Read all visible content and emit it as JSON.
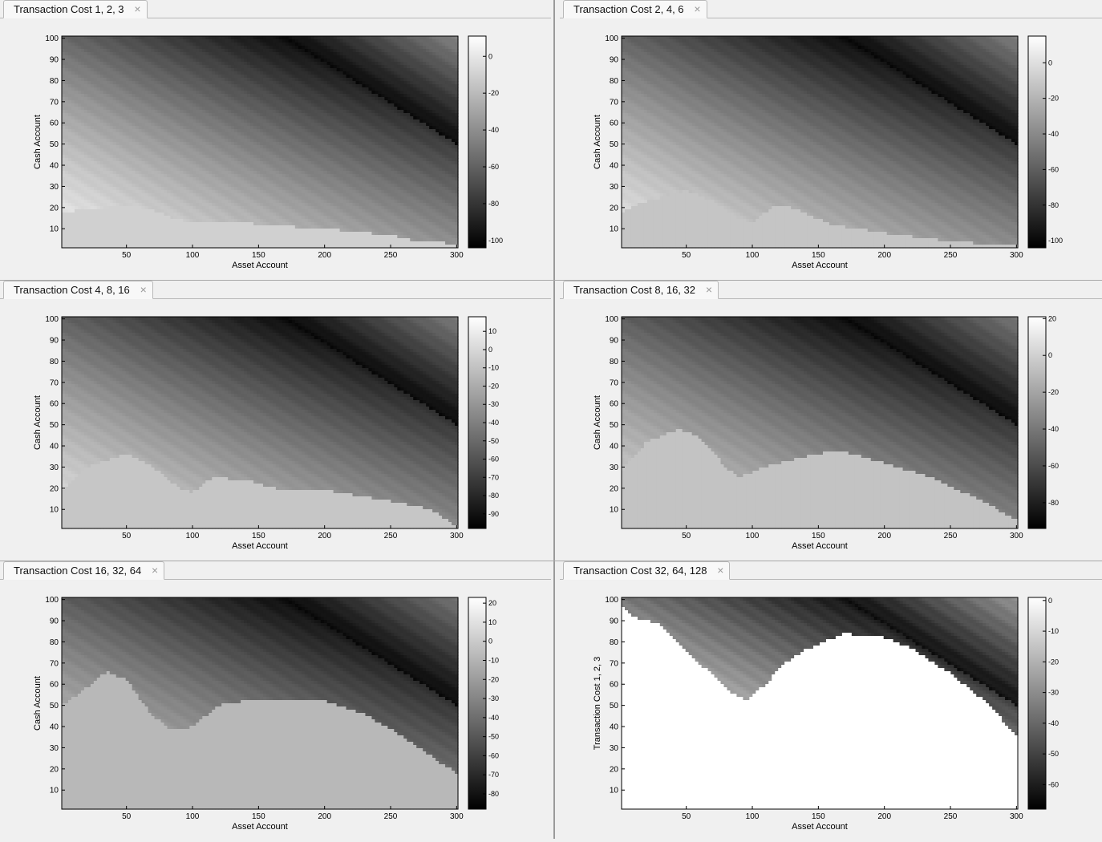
{
  "panels": [
    {
      "tab_label": "Transaction Cost 1, 2, 3",
      "xlabel": "Asset Account",
      "ylabel": "Cash Account",
      "colorbar_ticks": [
        0,
        -20,
        -40,
        -60,
        -80,
        -100
      ],
      "clim": [
        -104,
        11
      ],
      "plateau": {
        "value": -10,
        "boundary": [
          [
            1,
            18
          ],
          [
            25,
            19
          ],
          [
            50,
            21
          ],
          [
            70,
            19
          ],
          [
            90,
            14
          ],
          [
            110,
            13
          ],
          [
            140,
            13
          ],
          [
            150,
            12
          ],
          [
            200,
            10
          ],
          [
            250,
            7
          ],
          [
            270,
            4
          ],
          [
            300,
            3
          ]
        ]
      }
    },
    {
      "tab_label": "Transaction Cost 2, 4, 6",
      "xlabel": "Asset Account",
      "ylabel": "Cash Account",
      "colorbar_ticks": [
        0,
        -20,
        -40,
        -60,
        -80,
        -100
      ],
      "clim": [
        -104,
        15
      ],
      "plateau": {
        "value": -12,
        "boundary": [
          [
            1,
            18
          ],
          [
            20,
            23
          ],
          [
            50,
            28
          ],
          [
            70,
            23
          ],
          [
            90,
            15
          ],
          [
            100,
            13
          ],
          [
            115,
            20
          ],
          [
            130,
            20
          ],
          [
            160,
            12
          ],
          [
            200,
            8
          ],
          [
            250,
            4
          ],
          [
            300,
            2
          ]
        ]
      }
    },
    {
      "tab_label": "Transaction Cost 4, 8, 16",
      "xlabel": "Asset Account",
      "ylabel": "Cash Account",
      "colorbar_ticks": [
        10,
        0,
        -10,
        -20,
        -30,
        -40,
        -50,
        -60,
        -70,
        -80,
        -90
      ],
      "clim": [
        -98,
        18
      ],
      "plateau": {
        "value": -8,
        "boundary": [
          [
            1,
            18
          ],
          [
            20,
            30
          ],
          [
            50,
            36
          ],
          [
            70,
            30
          ],
          [
            90,
            20
          ],
          [
            100,
            18
          ],
          [
            115,
            25
          ],
          [
            140,
            24
          ],
          [
            160,
            20
          ],
          [
            200,
            19
          ],
          [
            250,
            14
          ],
          [
            280,
            10
          ],
          [
            300,
            2
          ]
        ]
      }
    },
    {
      "tab_label": "Transaction Cost 8, 16, 32",
      "xlabel": "Asset Account",
      "ylabel": "Cash Account",
      "colorbar_ticks": [
        20,
        0,
        -20,
        -40,
        -60,
        -80
      ],
      "clim": [
        -94,
        21
      ],
      "plateau": {
        "value": -6,
        "boundary": [
          [
            1,
            28
          ],
          [
            20,
            42
          ],
          [
            45,
            48
          ],
          [
            60,
            44
          ],
          [
            80,
            30
          ],
          [
            90,
            25
          ],
          [
            110,
            30
          ],
          [
            140,
            35
          ],
          [
            165,
            38
          ],
          [
            200,
            32
          ],
          [
            240,
            24
          ],
          [
            280,
            12
          ],
          [
            300,
            5
          ]
        ]
      }
    },
    {
      "tab_label": "Transaction Cost 16, 32, 64",
      "xlabel": "Asset Account",
      "ylabel": "Cash Account",
      "colorbar_ticks": [
        20,
        10,
        0,
        -10,
        -20,
        -30,
        -40,
        -50,
        -60,
        -70,
        -80
      ],
      "clim": [
        -88,
        23
      ],
      "plateau": {
        "value": -8,
        "boundary": [
          [
            1,
            50
          ],
          [
            15,
            56
          ],
          [
            35,
            66
          ],
          [
            50,
            62
          ],
          [
            70,
            45
          ],
          [
            85,
            38
          ],
          [
            100,
            40
          ],
          [
            120,
            50
          ],
          [
            150,
            53
          ],
          [
            200,
            52
          ],
          [
            230,
            46
          ],
          [
            260,
            35
          ],
          [
            285,
            24
          ],
          [
            300,
            18
          ]
        ]
      }
    },
    {
      "tab_label": "Transaction Cost 32, 64, 128",
      "xlabel": "Asset Account",
      "ylabel": "Transaction Cost 1, 2, 3",
      "colorbar_ticks": [
        0,
        -10,
        -20,
        -30,
        -40,
        -50,
        -60
      ],
      "clim": [
        -68,
        1
      ],
      "plateau": {
        "value": 1,
        "boundary": [
          [
            1,
            98
          ],
          [
            10,
            92
          ],
          [
            30,
            88
          ],
          [
            60,
            70
          ],
          [
            80,
            58
          ],
          [
            95,
            52
          ],
          [
            110,
            60
          ],
          [
            125,
            70
          ],
          [
            140,
            76
          ],
          [
            170,
            84
          ],
          [
            200,
            82
          ],
          [
            220,
            77
          ],
          [
            250,
            65
          ],
          [
            280,
            50
          ],
          [
            300,
            35
          ]
        ]
      }
    }
  ],
  "chart_data": [
    {
      "type": "heatmap",
      "title": "",
      "xlabel": "Asset Account",
      "ylabel": "Cash Account",
      "xlim": [
        1,
        301
      ],
      "ylim": [
        1,
        101
      ],
      "xticks": [
        50,
        100,
        150,
        200,
        250,
        300
      ],
      "yticks": [
        10,
        20,
        30,
        40,
        50,
        60,
        70,
        80,
        90,
        100
      ],
      "colorbar_ticks": [
        0,
        -20,
        -40,
        -60,
        -80,
        -100
      ],
      "colormap": "gray"
    },
    {
      "type": "heatmap",
      "title": "",
      "xlabel": "Asset Account",
      "ylabel": "Cash Account",
      "xlim": [
        1,
        301
      ],
      "ylim": [
        1,
        101
      ],
      "xticks": [
        50,
        100,
        150,
        200,
        250,
        300
      ],
      "yticks": [
        10,
        20,
        30,
        40,
        50,
        60,
        70,
        80,
        90,
        100
      ],
      "colorbar_ticks": [
        0,
        -20,
        -40,
        -60,
        -80,
        -100
      ],
      "colormap": "gray"
    },
    {
      "type": "heatmap",
      "title": "",
      "xlabel": "Asset Account",
      "ylabel": "Cash Account",
      "xlim": [
        1,
        301
      ],
      "ylim": [
        1,
        101
      ],
      "xticks": [
        50,
        100,
        150,
        200,
        250,
        300
      ],
      "yticks": [
        10,
        20,
        30,
        40,
        50,
        60,
        70,
        80,
        90,
        100
      ],
      "colorbar_ticks": [
        10,
        0,
        -10,
        -20,
        -30,
        -40,
        -50,
        -60,
        -70,
        -80,
        -90
      ],
      "colormap": "gray"
    },
    {
      "type": "heatmap",
      "title": "",
      "xlabel": "Asset Account",
      "ylabel": "Cash Account",
      "xlim": [
        1,
        301
      ],
      "ylim": [
        1,
        101
      ],
      "xticks": [
        50,
        100,
        150,
        200,
        250,
        300
      ],
      "yticks": [
        10,
        20,
        30,
        40,
        50,
        60,
        70,
        80,
        90,
        100
      ],
      "colorbar_ticks": [
        20,
        0,
        -20,
        -40,
        -60,
        -80
      ],
      "colormap": "gray"
    },
    {
      "type": "heatmap",
      "title": "",
      "xlabel": "Asset Account",
      "ylabel": "Cash Account",
      "xlim": [
        1,
        301
      ],
      "ylim": [
        1,
        101
      ],
      "xticks": [
        50,
        100,
        150,
        200,
        250,
        300
      ],
      "yticks": [
        10,
        20,
        30,
        40,
        50,
        60,
        70,
        80,
        90,
        100
      ],
      "colorbar_ticks": [
        20,
        10,
        0,
        -10,
        -20,
        -30,
        -40,
        -50,
        -60,
        -70,
        -80
      ],
      "colormap": "gray"
    },
    {
      "type": "heatmap",
      "title": "",
      "xlabel": "Asset Account",
      "ylabel": "Transaction Cost 1, 2, 3",
      "xlim": [
        1,
        301
      ],
      "ylim": [
        1,
        101
      ],
      "xticks": [
        50,
        100,
        150,
        200,
        250,
        300
      ],
      "yticks": [
        10,
        20,
        30,
        40,
        50,
        60,
        70,
        80,
        90,
        100
      ],
      "colorbar_ticks": [
        0,
        -10,
        -20,
        -30,
        -40,
        -50,
        -60
      ],
      "colormap": "gray"
    }
  ]
}
